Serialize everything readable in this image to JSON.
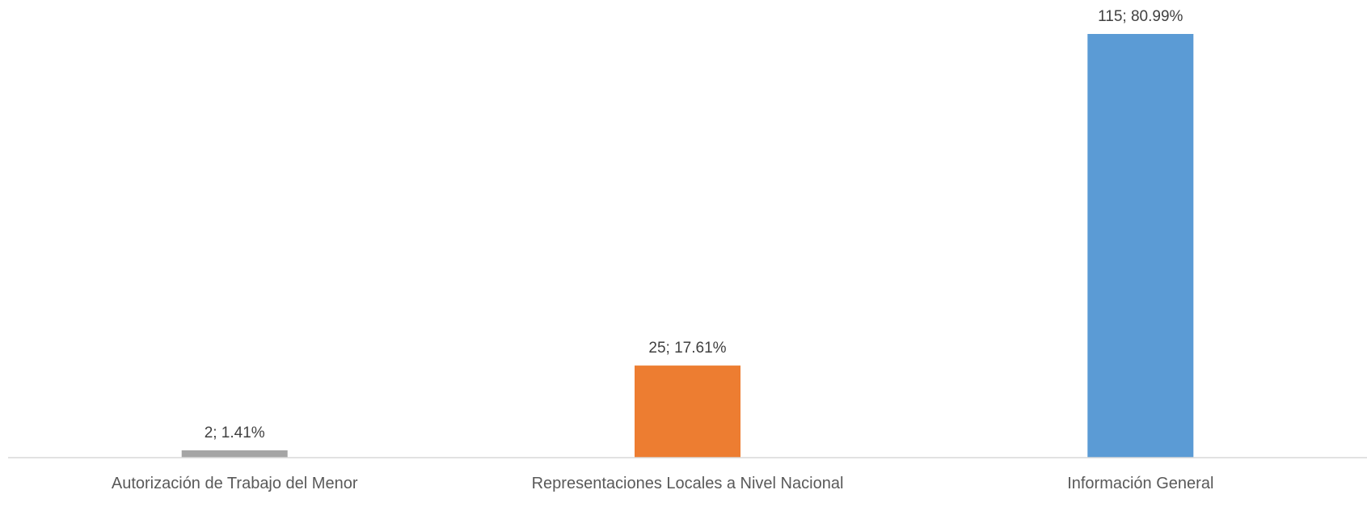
{
  "chart_data": {
    "type": "bar",
    "title": "",
    "xlabel": "",
    "ylabel": "",
    "categories": [
      "Autorización de Trabajo del Menor",
      "Representaciones Locales a Nivel Nacional",
      "Información General"
    ],
    "values": [
      2,
      25,
      115
    ],
    "data_labels": [
      "2; 1.41%",
      "25; 17.61%",
      "115; 80.99%"
    ],
    "percentages": [
      1.41,
      17.61,
      80.99
    ],
    "bar_colors": [
      "#A5A5A5",
      "#ED7D31",
      "#5B9BD5"
    ],
    "ylim": [
      0,
      115
    ],
    "grid": false,
    "legend": "none",
    "axis_line_color": "#D9D9D9"
  }
}
